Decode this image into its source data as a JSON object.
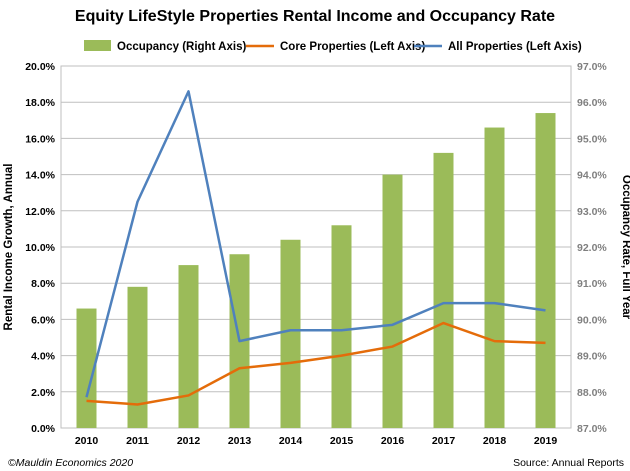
{
  "chart_data": {
    "type": "bar+line",
    "title": "Equity LifeStyle Properties Rental Income and Occupancy Rate",
    "categories": [
      "2010",
      "2011",
      "2012",
      "2013",
      "2014",
      "2015",
      "2016",
      "2017",
      "2018",
      "2019"
    ],
    "bar_series": {
      "name": "Occupancy (Right Axis)",
      "axis": "right",
      "color": "#9bbb59",
      "values": [
        90.3,
        90.9,
        91.5,
        91.8,
        92.2,
        92.6,
        94.0,
        94.6,
        95.3,
        95.7
      ]
    },
    "line_series": [
      {
        "name": "Core Properties (Left Axis)",
        "axis": "left",
        "color": "#e46c0a",
        "values": [
          1.5,
          1.3,
          1.8,
          3.3,
          3.6,
          4.0,
          4.5,
          5.8,
          4.8,
          4.7
        ]
      },
      {
        "name": "All Properties (Left Axis)",
        "axis": "left",
        "color": "#4f81bd",
        "values": [
          1.7,
          12.5,
          18.6,
          4.8,
          5.4,
          5.4,
          5.7,
          6.9,
          6.9,
          6.5
        ]
      }
    ],
    "left_axis": {
      "label": "Rental Income Growth, Annual",
      "ylim": [
        0,
        20
      ],
      "ticks": [
        "0.0%",
        "2.0%",
        "4.0%",
        "6.0%",
        "8.0%",
        "10.0%",
        "12.0%",
        "14.0%",
        "16.0%",
        "18.0%",
        "20.0%"
      ]
    },
    "right_axis": {
      "label": "Occupancy Rate, Full Year",
      "ylim": [
        87,
        97
      ],
      "ticks": [
        "87.0%",
        "88.0%",
        "89.0%",
        "90.0%",
        "91.0%",
        "92.0%",
        "93.0%",
        "94.0%",
        "95.0%",
        "96.0%",
        "97.0%"
      ]
    },
    "legend_position": "top",
    "grid": true
  },
  "footer": {
    "left": "©Mauldin Economics 2020",
    "right": "Source: Annual Reports"
  }
}
